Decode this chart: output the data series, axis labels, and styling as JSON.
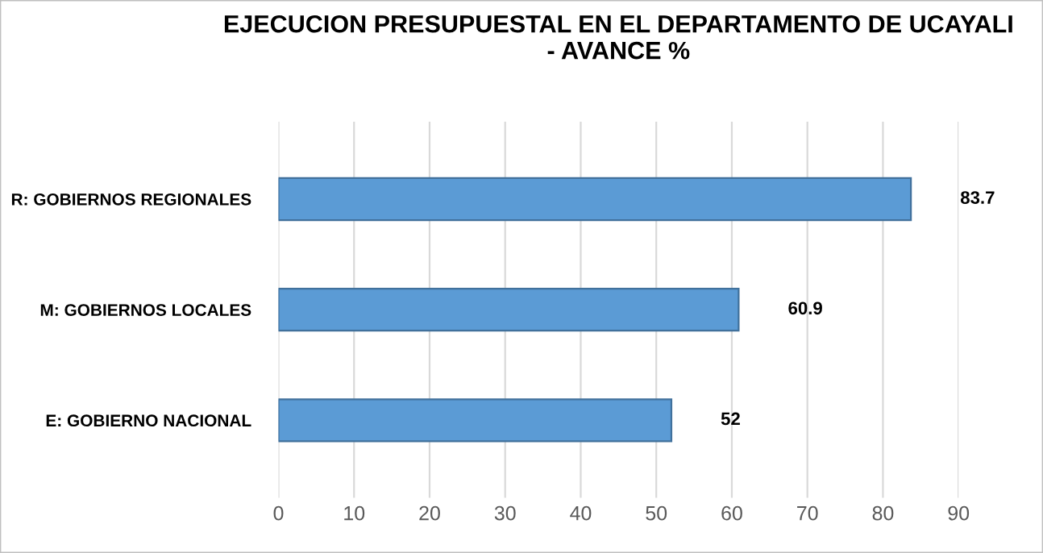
{
  "chart_data": {
    "type": "bar",
    "orientation": "horizontal",
    "title": "EJECUCION PRESUPUESTAL EN EL DEPARTAMENTO DE UCAYALI\n- AVANCE %",
    "categories": [
      "R: GOBIERNOS REGIONALES",
      "M: GOBIERNOS LOCALES",
      "E: GOBIERNO NACIONAL"
    ],
    "values": [
      83.7,
      60.9,
      52
    ],
    "color": "#5b9bd5",
    "data_labels": true,
    "xlim": [
      0,
      90
    ],
    "xticks": [
      0,
      10,
      20,
      30,
      40,
      50,
      60,
      70,
      80,
      90
    ],
    "grid": "x"
  }
}
